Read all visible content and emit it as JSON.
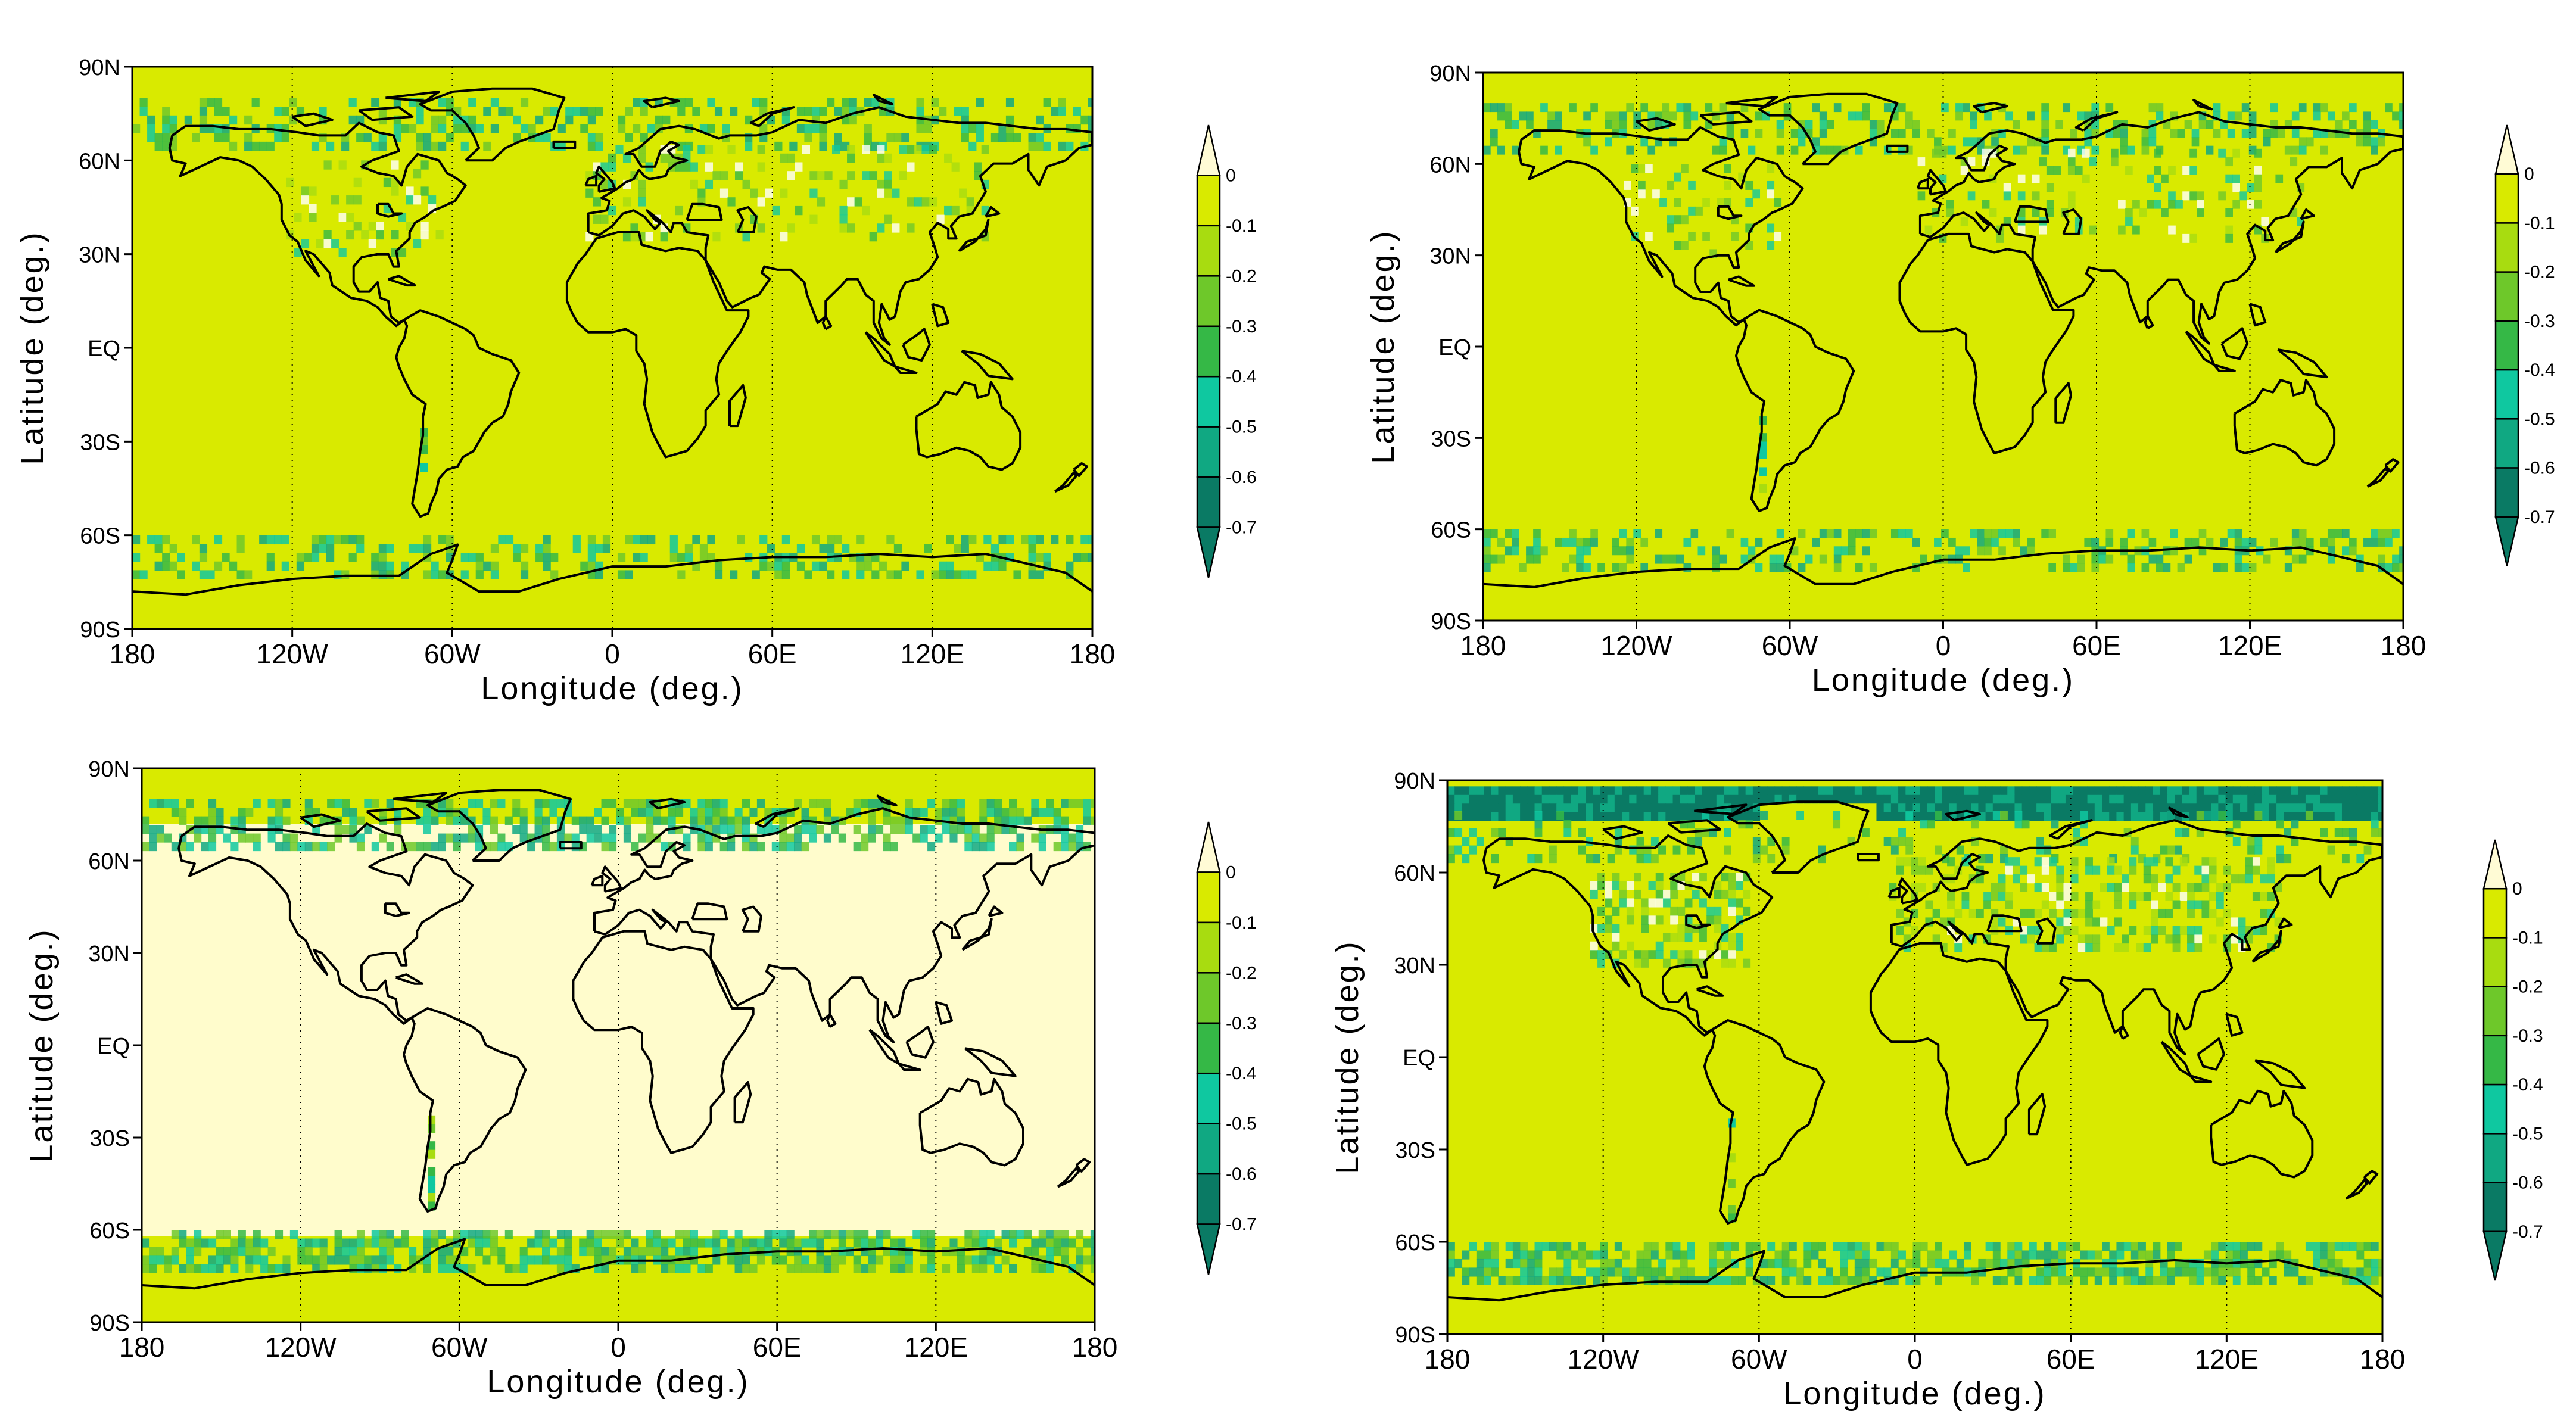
{
  "colors": {
    "background_field": "#d9ea00",
    "pale_field": "#fffccc",
    "coast": "#000000"
  },
  "colorbar": {
    "labels": [
      "0",
      "-0.1",
      "-0.2",
      "-0.3",
      "-0.4",
      "-0.5",
      "-0.6",
      "-0.7"
    ],
    "colors": [
      "#fffbd5",
      "#d9ea00",
      "#a8dc10",
      "#6ec82a",
      "#35b846",
      "#0fc8a0",
      "#10a882",
      "#0a7a64"
    ]
  },
  "axes": {
    "xlabel": "Longitude (deg.)",
    "ylabel": "Latitude (deg.)",
    "xticks": [
      "180",
      "120W",
      "60W",
      "0",
      "60E",
      "120E",
      "180"
    ],
    "yticks": [
      "90N",
      "60N",
      "30N",
      "EQ",
      "30S",
      "60S",
      "90S"
    ]
  },
  "panels": [
    {
      "id": "top-left",
      "field": "bright",
      "polar_band": "light",
      "north_bright": true
    },
    {
      "id": "top-right",
      "field": "bright",
      "polar_band": "light",
      "north_bright": true
    },
    {
      "id": "bottom-left",
      "field": "pale",
      "polar_band": "medium",
      "north_bright": false
    },
    {
      "id": "bottom-right",
      "field": "bright",
      "polar_band": "dark",
      "north_bright": true
    }
  ]
}
